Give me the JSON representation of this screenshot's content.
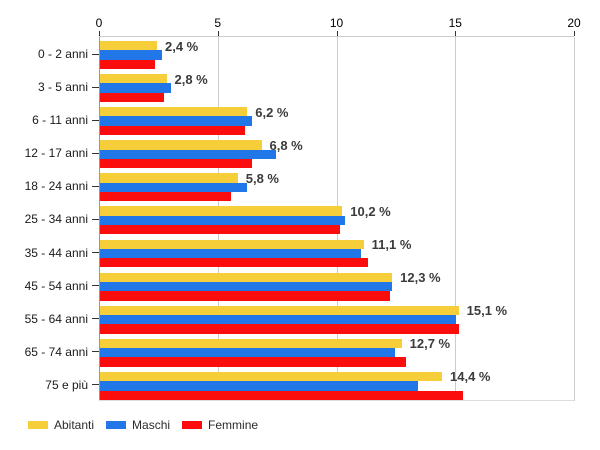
{
  "chart_data": {
    "type": "bar",
    "orientation": "horizontal",
    "title": "",
    "xlabel": "",
    "ylabel": "",
    "xlim": [
      0,
      20
    ],
    "x_ticks": [
      0,
      5,
      10,
      15,
      20
    ],
    "grid": true,
    "legend_position": "bottom-left",
    "categories": [
      "0 - 2 anni",
      "3 - 5 anni",
      "6 - 11 anni",
      "12 - 17 anni",
      "18 - 24 anni",
      "25 - 34 anni",
      "35 - 44 anni",
      "45 - 54 anni",
      "55 - 64 anni",
      "65 - 74 anni",
      "75 e più"
    ],
    "series": [
      {
        "name": "Abitanti",
        "color": "#F5CE3A",
        "values": [
          2.4,
          2.8,
          6.2,
          6.8,
          5.8,
          10.2,
          11.1,
          12.3,
          15.1,
          12.7,
          14.4
        ]
      },
      {
        "name": "Maschi",
        "color": "#2277E8",
        "values": [
          2.6,
          3.0,
          6.4,
          7.4,
          6.2,
          10.3,
          11.0,
          12.3,
          15.0,
          12.4,
          13.4
        ]
      },
      {
        "name": "Femmine",
        "color": "#FB0D0D",
        "values": [
          2.3,
          2.7,
          6.1,
          6.4,
          5.5,
          10.1,
          11.3,
          12.2,
          15.1,
          12.9,
          15.3
        ]
      }
    ],
    "value_labels": [
      "2,4 %",
      "2,8 %",
      "6,2 %",
      "6,8 %",
      "5,8 %",
      "10,2 %",
      "11,1 %",
      "12,3 %",
      "15,1 %",
      "12,7 %",
      "14,4 %"
    ],
    "value_label_series": "Abitanti"
  },
  "colors": {
    "grid": "#cccccc",
    "axis_line": "#999999",
    "tick": "#333333",
    "axis_text": "#000000",
    "category_text": "#1a1a1a",
    "value_label_text": "#3b3b3b"
  }
}
